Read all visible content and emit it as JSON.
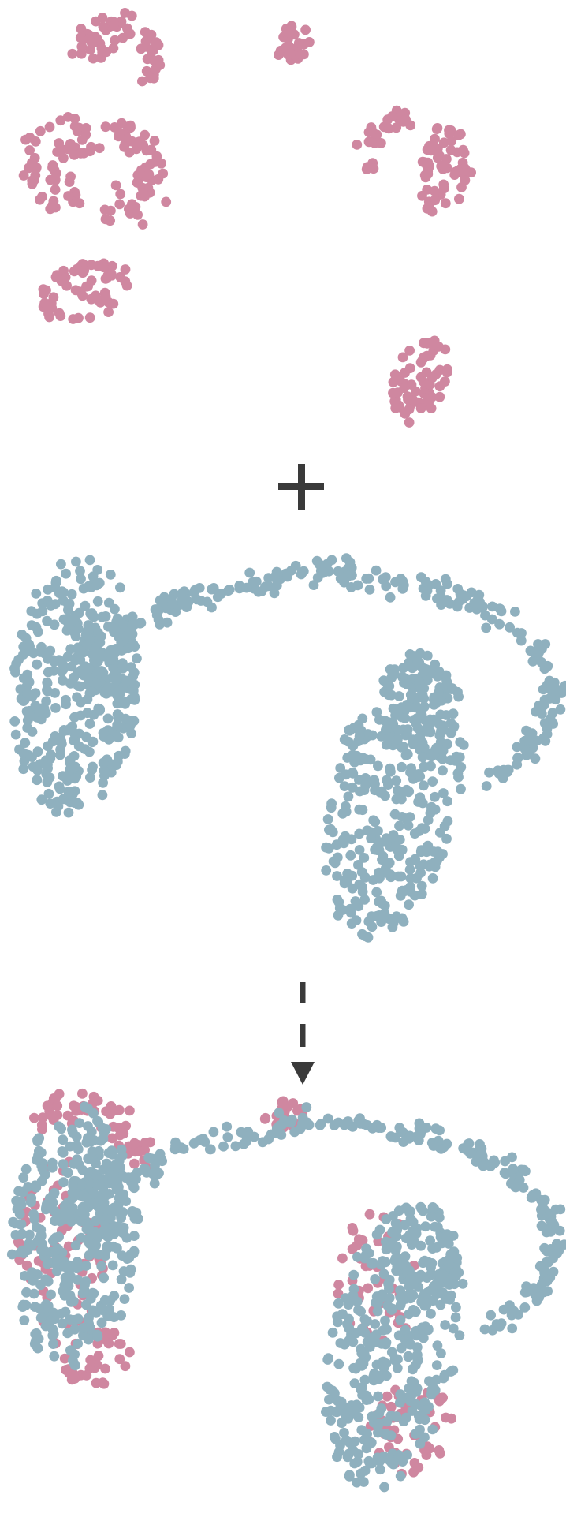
{
  "colors": {
    "source_points": "#cf87a0",
    "target_points": "#8fb0be",
    "operator": "#3a3a3a",
    "background": "#ffffff"
  },
  "operators": {
    "combine_symbol": "plus-icon",
    "result_symbol": "dashed-arrow-down-icon"
  }
}
